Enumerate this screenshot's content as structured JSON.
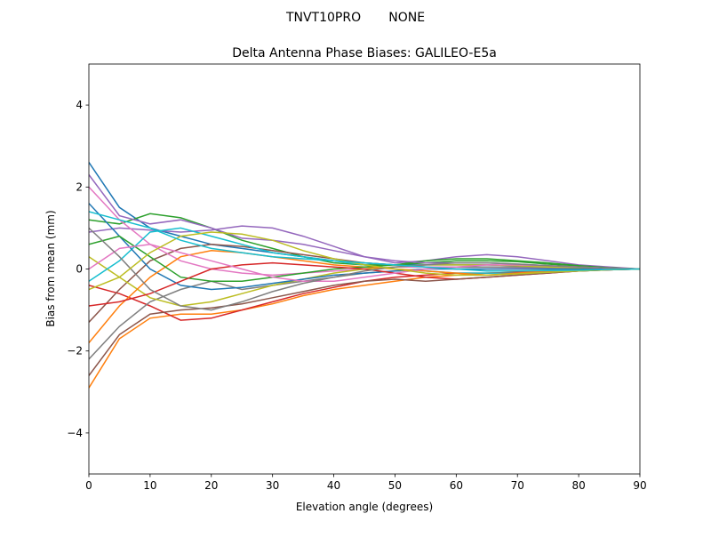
{
  "chart_data": {
    "type": "line",
    "suptitle": "TNVT10PRO       NONE",
    "title": "Delta Antenna Phase Biases: GALILEO-E5a",
    "xlabel": "Elevation angle (degrees)",
    "ylabel": "Bias from mean (mm)",
    "xlim": [
      0,
      90
    ],
    "ylim": [
      -5,
      5
    ],
    "xticks": [
      0,
      10,
      20,
      30,
      40,
      50,
      60,
      70,
      80,
      90
    ],
    "xtick_labels": [
      "0",
      "10",
      "20",
      "30",
      "40",
      "50",
      "60",
      "70",
      "80",
      "90"
    ],
    "yticks": [
      -4,
      -2,
      0,
      2,
      4
    ],
    "ytick_labels": [
      "−4",
      "−2",
      "0",
      "2",
      "4"
    ],
    "grid": false,
    "colors": [
      "#1f77b4",
      "#ff7f0e",
      "#2ca02c",
      "#d62728",
      "#9467bd",
      "#8c564b",
      "#e377c2",
      "#7f7f7f",
      "#bcbd22",
      "#17becf"
    ],
    "x": [
      0,
      5,
      10,
      15,
      20,
      25,
      30,
      35,
      40,
      45,
      50,
      55,
      60,
      65,
      70,
      75,
      80,
      85,
      90
    ],
    "series": [
      {
        "values": [
          2.6,
          1.5,
          1.0,
          0.8,
          0.6,
          0.5,
          0.4,
          0.3,
          0.2,
          0.15,
          0.1,
          0.1,
          0.1,
          0.1,
          0.08,
          0.05,
          0.03,
          0.02,
          0
        ]
      },
      {
        "values": [
          -2.9,
          -1.7,
          -1.2,
          -1.1,
          -1.1,
          -1.0,
          -0.85,
          -0.65,
          -0.5,
          -0.4,
          -0.3,
          -0.2,
          -0.15,
          -0.1,
          -0.08,
          -0.05,
          -0.03,
          -0.01,
          0
        ]
      },
      {
        "values": [
          1.2,
          1.1,
          1.35,
          1.25,
          1.0,
          0.7,
          0.5,
          0.3,
          0.15,
          0.1,
          0.1,
          0.15,
          0.2,
          0.2,
          0.18,
          0.12,
          0.07,
          0.03,
          0
        ]
      },
      {
        "values": [
          -0.4,
          -0.6,
          -0.9,
          -1.25,
          -1.2,
          -1.0,
          -0.8,
          -0.6,
          -0.45,
          -0.3,
          -0.2,
          -0.15,
          -0.1,
          -0.1,
          -0.08,
          -0.06,
          -0.04,
          -0.02,
          0
        ]
      },
      {
        "values": [
          0.9,
          1.0,
          0.95,
          0.9,
          0.95,
          1.05,
          1.0,
          0.8,
          0.55,
          0.3,
          0.15,
          0.2,
          0.3,
          0.35,
          0.3,
          0.2,
          0.1,
          0.05,
          0
        ]
      },
      {
        "values": [
          -1.3,
          -0.5,
          0.2,
          0.5,
          0.6,
          0.55,
          0.45,
          0.35,
          0.25,
          0.15,
          0.1,
          0.05,
          0,
          0,
          0,
          0,
          0,
          0,
          0
        ]
      },
      {
        "values": [
          2.0,
          1.2,
          0.6,
          0.2,
          0,
          -0.1,
          -0.15,
          -0.1,
          -0.05,
          0,
          0.05,
          0.05,
          0.05,
          0.05,
          0.04,
          0.03,
          0.02,
          0.01,
          0
        ]
      },
      {
        "values": [
          -2.2,
          -1.4,
          -0.8,
          -0.5,
          -0.3,
          -0.5,
          -0.4,
          -0.3,
          -0.2,
          -0.1,
          -0.05,
          0,
          0.05,
          0.05,
          0.05,
          0.04,
          0.03,
          0.01,
          0
        ]
      },
      {
        "values": [
          0.3,
          -0.2,
          -0.7,
          -0.9,
          -0.8,
          -0.6,
          -0.4,
          -0.25,
          -0.1,
          0,
          0.05,
          0.1,
          0.1,
          0.1,
          0.08,
          0.05,
          0.03,
          0.01,
          0
        ]
      },
      {
        "values": [
          -0.3,
          0.2,
          0.9,
          1.0,
          0.8,
          0.6,
          0.4,
          0.3,
          0.2,
          0.1,
          0,
          -0.05,
          -0.1,
          -0.1,
          -0.1,
          -0.08,
          -0.05,
          -0.02,
          0
        ]
      },
      {
        "values": [
          1.6,
          0.8,
          0,
          -0.4,
          -0.5,
          -0.45,
          -0.35,
          -0.25,
          -0.15,
          -0.1,
          -0.05,
          0,
          0,
          0,
          0,
          0,
          0,
          0,
          0
        ]
      },
      {
        "values": [
          -1.8,
          -0.9,
          -0.2,
          0.3,
          0.45,
          0.4,
          0.3,
          0.2,
          0.1,
          0.05,
          0,
          -0.05,
          -0.1,
          -0.15,
          -0.1,
          -0.05,
          -0.03,
          -0.01,
          0
        ]
      },
      {
        "values": [
          0.6,
          0.8,
          0.3,
          -0.2,
          -0.3,
          -0.3,
          -0.2,
          -0.1,
          0,
          0.05,
          0.1,
          0.2,
          0.25,
          0.25,
          0.2,
          0.15,
          0.08,
          0.03,
          0
        ]
      },
      {
        "values": [
          -0.9,
          -0.8,
          -0.6,
          -0.3,
          0,
          0.1,
          0.15,
          0.1,
          0.05,
          0,
          -0.1,
          -0.2,
          -0.25,
          -0.2,
          -0.15,
          -0.1,
          -0.05,
          -0.02,
          0
        ]
      },
      {
        "values": [
          2.3,
          1.3,
          1.1,
          1.2,
          1.0,
          0.75,
          0.7,
          0.6,
          0.45,
          0.3,
          0.2,
          0.15,
          0.15,
          0.15,
          0.12,
          0.08,
          0.05,
          0.02,
          0
        ]
      },
      {
        "values": [
          -2.6,
          -1.6,
          -1.1,
          -1.0,
          -0.95,
          -0.85,
          -0.7,
          -0.55,
          -0.4,
          -0.3,
          -0.25,
          -0.3,
          -0.25,
          -0.2,
          -0.15,
          -0.1,
          -0.05,
          -0.02,
          0
        ]
      },
      {
        "values": [
          0,
          0.5,
          0.6,
          0.4,
          0.2,
          0,
          -0.2,
          -0.3,
          -0.3,
          -0.2,
          -0.1,
          0,
          0.05,
          0.1,
          0.1,
          0.08,
          0.05,
          0.02,
          0
        ]
      },
      {
        "values": [
          1.0,
          0.3,
          -0.5,
          -0.9,
          -1.0,
          -0.8,
          -0.55,
          -0.35,
          -0.2,
          -0.05,
          0.05,
          0.1,
          0.15,
          0.15,
          0.12,
          0.08,
          0.05,
          0.02,
          0
        ]
      },
      {
        "values": [
          -0.5,
          -0.2,
          0.4,
          0.8,
          0.9,
          0.85,
          0.7,
          0.45,
          0.25,
          0.1,
          0,
          -0.1,
          -0.15,
          -0.15,
          -0.12,
          -0.08,
          -0.05,
          -0.02,
          0
        ]
      },
      {
        "values": [
          1.4,
          1.2,
          1.0,
          0.7,
          0.5,
          0.4,
          0.3,
          0.25,
          0.2,
          0.15,
          0.1,
          0.05,
          0,
          -0.05,
          -0.05,
          -0.04,
          -0.03,
          -0.01,
          0
        ]
      }
    ]
  }
}
